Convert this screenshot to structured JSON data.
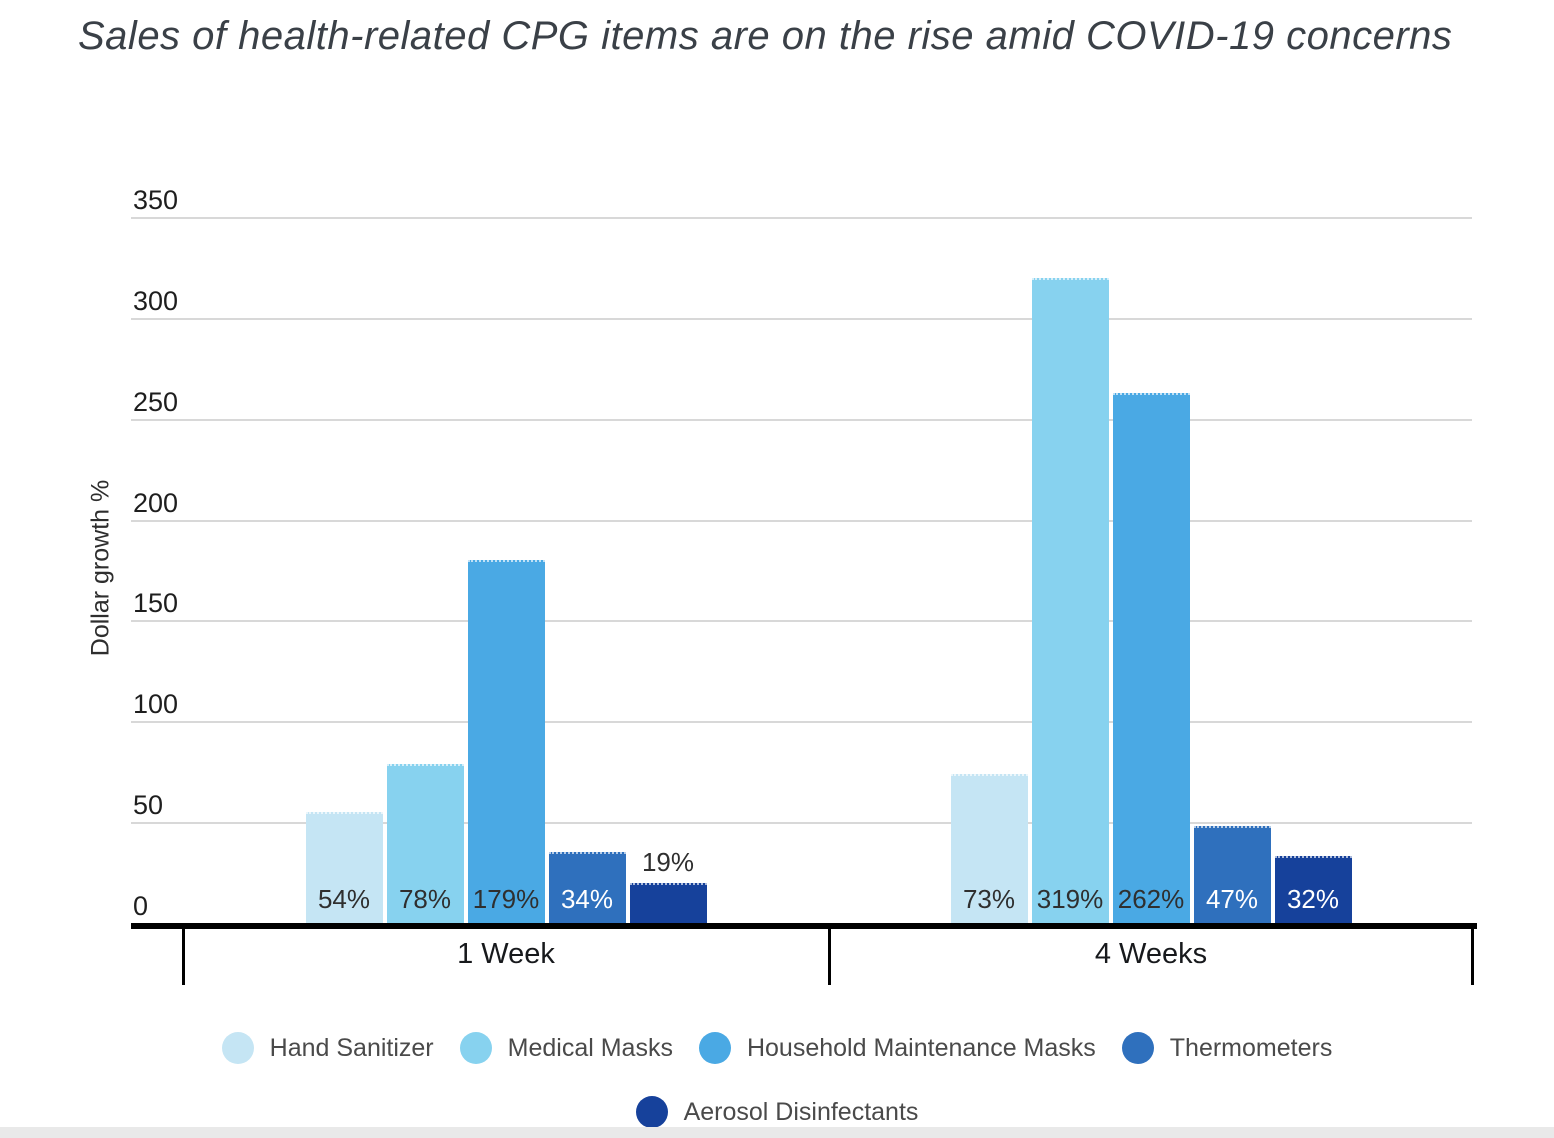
{
  "chart_data": {
    "type": "bar",
    "title": "Sales of health-related CPG items are on the rise amid COVID-19 concerns",
    "xlabel": "",
    "ylabel": "Dollar growth %",
    "categories": [
      "1 Week",
      "4 Weeks"
    ],
    "series": [
      {
        "name": "Hand Sanitizer",
        "color": "#C5E5F4",
        "values": [
          54,
          73
        ],
        "value_labels": [
          "54%",
          "73%"
        ],
        "label_color": "#2F2F2F"
      },
      {
        "name": "Medical Masks",
        "color": "#87D2EF",
        "values": [
          78,
          319
        ],
        "value_labels": [
          "78%",
          "319%"
        ],
        "label_color": "#2F2F2F"
      },
      {
        "name": "Household Maintenance Masks",
        "color": "#4AA9E4",
        "values": [
          179,
          262
        ],
        "value_labels": [
          "179%",
          "262%"
        ],
        "label_color": "#2F2F2F"
      },
      {
        "name": "Thermometers",
        "color": "#2F70BD",
        "values": [
          34,
          47
        ],
        "value_labels": [
          "34%",
          "47%"
        ],
        "label_color": "#FFFFFF"
      },
      {
        "name": "Aerosol Disinfectants",
        "color": "#16419B",
        "values": [
          19,
          32
        ],
        "value_labels": [
          "19%",
          "32%"
        ],
        "label_color": "#FFFFFF"
      }
    ],
    "ylim": [
      0,
      350
    ],
    "yticks": [
      0,
      50,
      100,
      150,
      200,
      250,
      300,
      350
    ],
    "grid": true,
    "legend_position": "bottom",
    "legend_rows": [
      [
        0,
        1,
        2,
        3
      ],
      [
        4
      ]
    ],
    "theme": {
      "grid_color": "#D8D8D8",
      "axis_color": "#000000",
      "title_color": "#3A4047",
      "tick_label_color": "#1E1E1E",
      "category_label_color": "#17191C",
      "legend_text_color": "#4A4A4A",
      "bar_label_dark": "#2F2F2F",
      "bottom_strip_color": "#E9E9E9"
    }
  }
}
